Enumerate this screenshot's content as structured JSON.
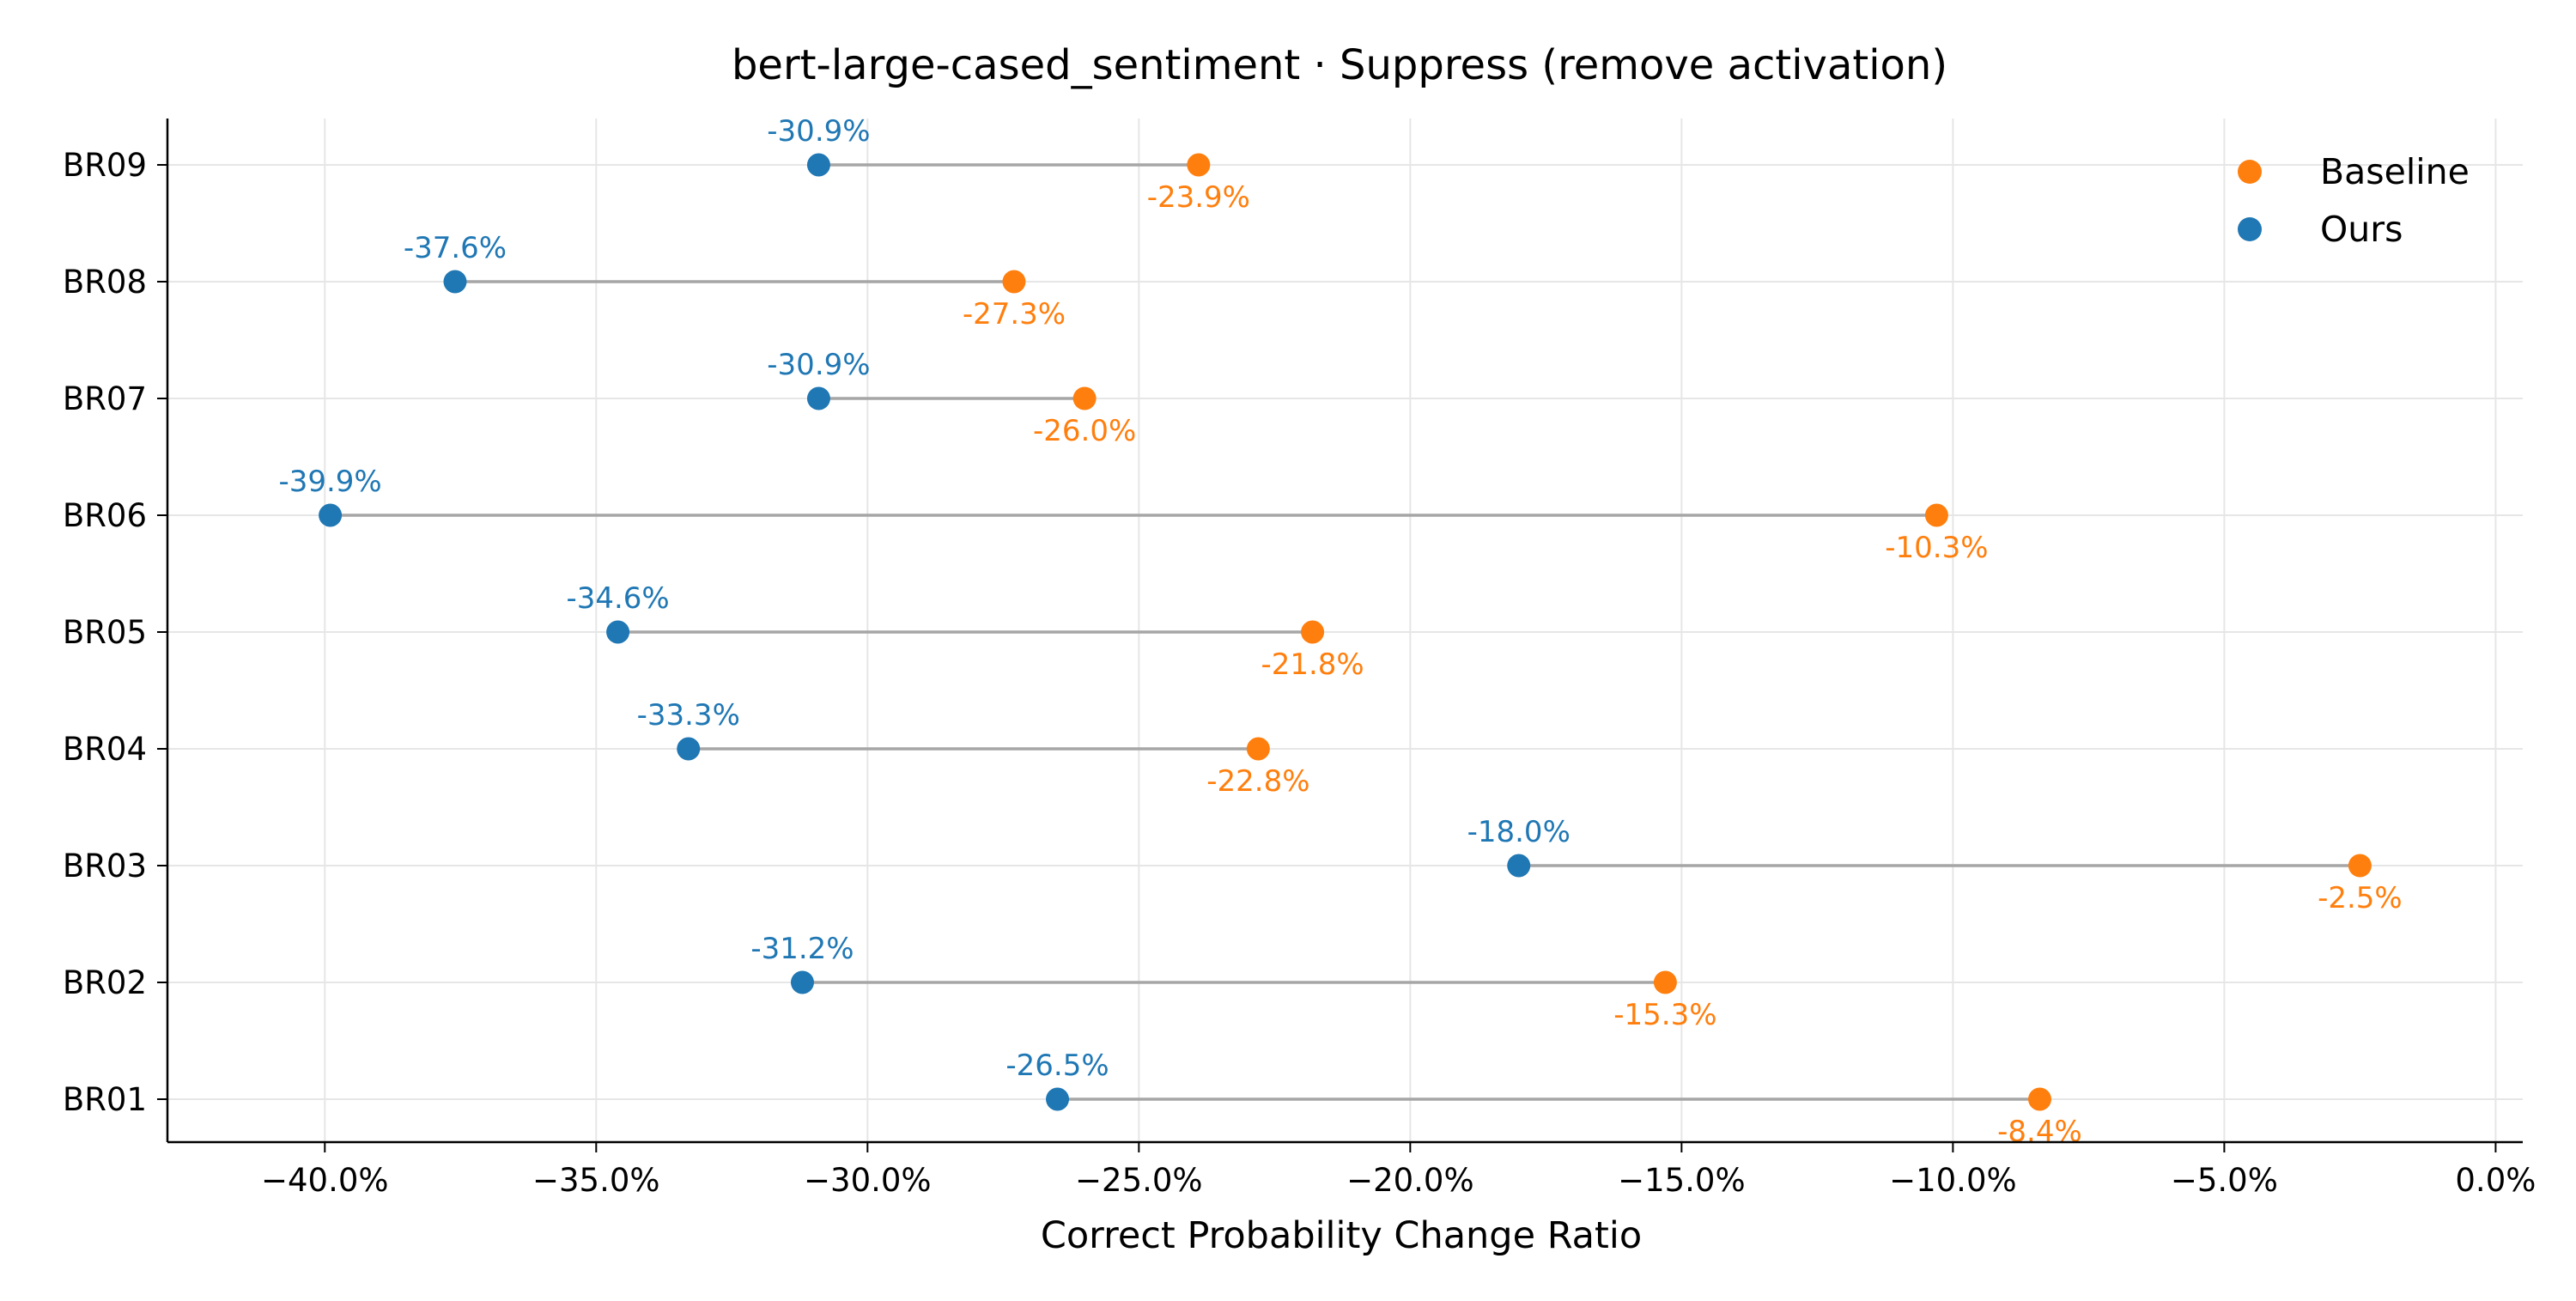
{
  "chart_data": {
    "type": "dumbbell",
    "title": "bert-large-cased_sentiment · Suppress (remove activation)",
    "xlabel": "Correct Probability Change Ratio",
    "ylabel": "",
    "xlim": [
      -42.9,
      0.5
    ],
    "xticks": [
      -40,
      -35,
      -30,
      -25,
      -20,
      -15,
      -10,
      -5,
      0
    ],
    "xtick_labels": [
      "−40.0%",
      "−35.0%",
      "−30.0%",
      "−25.0%",
      "−20.0%",
      "−15.0%",
      "−10.0%",
      "−5.0%",
      "0.0%"
    ],
    "grid": true,
    "legend_position": "top-right",
    "categories": [
      "BR09",
      "BR08",
      "BR07",
      "BR06",
      "BR05",
      "BR04",
      "BR03",
      "BR02",
      "BR01"
    ],
    "series": [
      {
        "name": "Baseline",
        "color": "#ff7f0e",
        "values": [
          -23.9,
          -27.3,
          -26.0,
          -10.3,
          -21.8,
          -22.8,
          -2.5,
          -15.3,
          -8.4
        ],
        "labels": [
          "-23.9%",
          "-27.3%",
          "-26.0%",
          "-10.3%",
          "-21.8%",
          "-22.8%",
          "-2.5%",
          "-15.3%",
          "-8.4%"
        ]
      },
      {
        "name": "Ours",
        "color": "#1f77b4",
        "values": [
          -30.9,
          -37.6,
          -30.9,
          -39.9,
          -34.6,
          -33.3,
          -18.0,
          -31.2,
          -26.5
        ],
        "labels": [
          "-30.9%",
          "-37.6%",
          "-30.9%",
          "-39.9%",
          "-34.6%",
          "-33.3%",
          "-18.0%",
          "-31.2%",
          "-26.5%"
        ]
      }
    ]
  }
}
